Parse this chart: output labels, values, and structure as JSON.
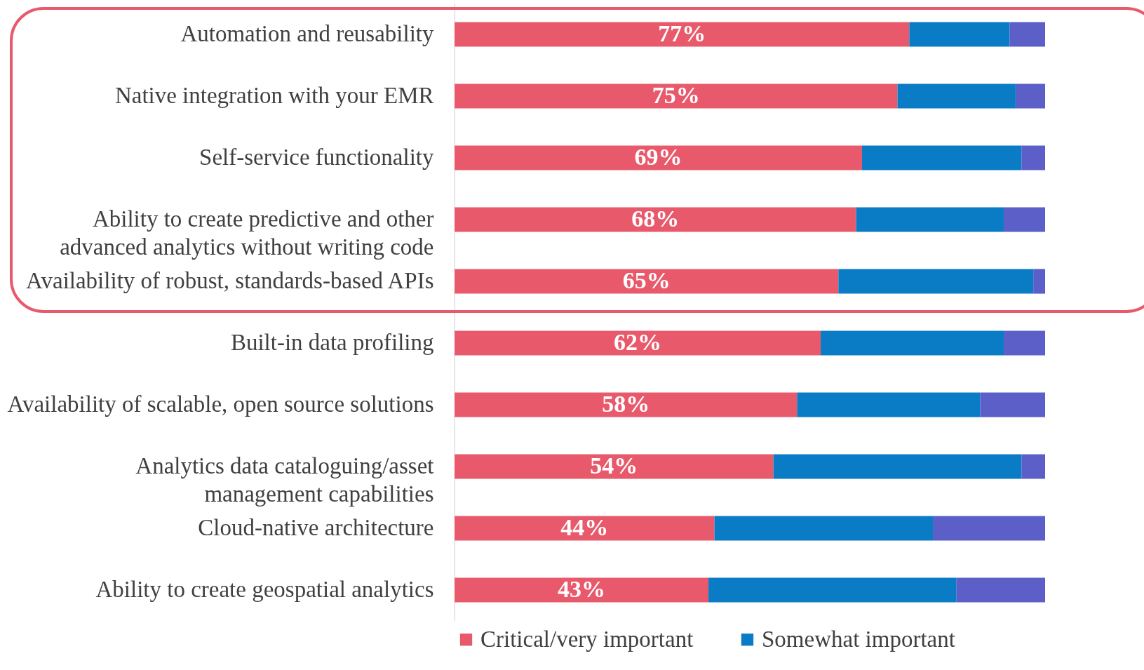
{
  "chart_data": {
    "type": "bar",
    "orientation": "horizontal",
    "stacked": true,
    "categories": [
      "Automation and reusability",
      "Native integration with your EMR",
      "Self-service functionality",
      "Ability to create predictive and other advanced analytics without writing code",
      "Availability of robust, standards-based APIs",
      "Built-in data profiling",
      "Availability of scalable, open source solutions",
      "Analytics data cataloguing/asset management capabilities",
      "Cloud-native architecture",
      "Ability to create geospatial analytics"
    ],
    "series": [
      {
        "name": "Critical/very important",
        "color": "#e85a6b",
        "values": [
          77,
          75,
          69,
          68,
          65,
          62,
          58,
          54,
          44,
          43
        ],
        "value_labels": [
          "77%",
          "75%",
          "69%",
          "68%",
          "65%",
          "62%",
          "58%",
          "54%",
          "44%",
          "43%"
        ]
      },
      {
        "name": "Somewhat important",
        "color": "#0a7bc5",
        "values": [
          17,
          20,
          27,
          25,
          33,
          31,
          31,
          42,
          37,
          42
        ]
      },
      {
        "color": "#5b5fc7",
        "values": [
          6,
          5,
          4,
          7,
          2,
          7,
          11,
          4,
          19,
          15
        ]
      }
    ],
    "xlim": [
      0,
      100
    ],
    "tick_labels": "y",
    "grid": false,
    "legend": "bottom"
  }
}
